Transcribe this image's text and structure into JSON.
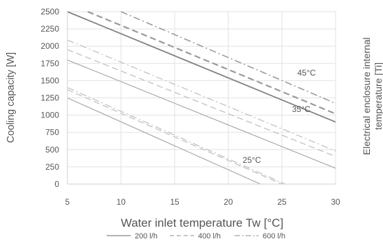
{
  "chart_data": {
    "type": "line",
    "title": "",
    "xlabel": "Water inlet temperature Tw [°C]",
    "ylabel": "Cooling capacity [W]",
    "ylabel_right": "Electrical enclosure internal temperature [Ti]",
    "xlim": [
      5,
      30
    ],
    "ylim": [
      0,
      2500
    ],
    "xticks": [
      5,
      10,
      15,
      20,
      25,
      30
    ],
    "yticks": [
      0,
      250,
      500,
      750,
      1000,
      1250,
      1500,
      1750,
      2000,
      2250,
      2500
    ],
    "grid": true,
    "legend_position": "bottom",
    "legend": [
      {
        "label": "200 l/h",
        "style": "solid",
        "color": "#999999"
      },
      {
        "label": "400 l/h",
        "style": "dashed",
        "color": "#b3b3b3"
      },
      {
        "label": "600 l/h",
        "style": "dashdot",
        "color": "#b3b3b3"
      }
    ],
    "annotations": [
      {
        "text": "45°C",
        "x": 27.3,
        "y": 1615
      },
      {
        "text": "35°C",
        "x": 26.8,
        "y": 1085
      },
      {
        "text": "25°C",
        "x": 22.2,
        "y": 350
      }
    ],
    "series": [
      {
        "group": "45°C",
        "name": "200 l/h",
        "style": "solid",
        "color": "#808080",
        "width": 1.8,
        "x": [
          5,
          30
        ],
        "y": [
          2500,
          900
        ]
      },
      {
        "group": "45°C",
        "name": "400 l/h",
        "style": "dashed",
        "color": "#9a9a9a",
        "width": 2.2,
        "x": [
          6.9,
          30
        ],
        "y": [
          2500,
          1020
        ]
      },
      {
        "group": "45°C",
        "name": "600 l/h",
        "style": "dashdot",
        "color": "#9a9a9a",
        "width": 1.6,
        "x": [
          10,
          30
        ],
        "y": [
          2500,
          1170
        ]
      },
      {
        "group": "35°C",
        "name": "200 l/h",
        "style": "solid",
        "color": "#aaaaaa",
        "width": 1.2,
        "x": [
          5,
          30
        ],
        "y": [
          1800,
          230
        ]
      },
      {
        "group": "35°C",
        "name": "400 l/h",
        "style": "dashed",
        "color": "#bdbdbd",
        "width": 1.2,
        "x": [
          5,
          30
        ],
        "y": [
          1950,
          400
        ]
      },
      {
        "group": "35°C",
        "name": "600 l/h",
        "style": "dashdot",
        "color": "#bdbdbd",
        "width": 1.2,
        "x": [
          5,
          30
        ],
        "y": [
          2090,
          480
        ]
      },
      {
        "group": "25°C",
        "name": "200 l/h",
        "style": "solid",
        "color": "#aaaaaa",
        "width": 1.2,
        "x": [
          5,
          23
        ],
        "y": [
          1250,
          0
        ]
      },
      {
        "group": "25°C",
        "name": "400 l/h",
        "style": "dashed",
        "color": "#bdbdbd",
        "width": 1.2,
        "x": [
          5,
          25
        ],
        "y": [
          1370,
          0
        ]
      },
      {
        "group": "25°C",
        "name": "600 l/h",
        "style": "dashdot",
        "color": "#bdbdbd",
        "width": 1.2,
        "x": [
          5,
          25.3
        ],
        "y": [
          1400,
          0
        ]
      }
    ]
  }
}
